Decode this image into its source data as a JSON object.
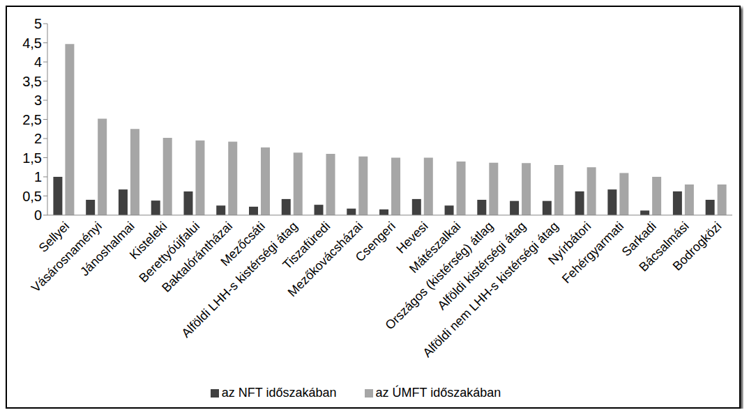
{
  "chart_data": {
    "type": "bar",
    "categories": [
      "Sellyei",
      "Vásárosnaményi",
      "Jánoshalmai",
      "Kisteleki",
      "Berettyóújfalui",
      "Baktalórántházai",
      "Mezőcsáti",
      "Alföldi LHH-s kistérségi átag",
      "Tiszafüredi",
      "Mezőkovácsházai",
      "Csengeri",
      "Hevesi",
      "Mátészalkai",
      "Országos (kistérség) átlag",
      "Alföldi kistérségi átag",
      "Alföldi nem LHH-s kistérségi átag",
      "Nyírbátori",
      "Fehérgyarmati",
      "Sarkadi",
      "Bácsalmási",
      "Bodrogközi"
    ],
    "series": [
      {
        "name": "az NFT időszakában",
        "color": "#404040",
        "values": [
          1.0,
          0.4,
          0.67,
          0.38,
          0.62,
          0.25,
          0.22,
          0.42,
          0.27,
          0.17,
          0.15,
          0.42,
          0.25,
          0.4,
          0.37,
          0.37,
          0.62,
          0.67,
          0.12,
          0.62,
          0.4
        ]
      },
      {
        "name": "az ÚMFT időszakában",
        "color": "#a6a6a6",
        "values": [
          4.47,
          2.52,
          2.25,
          2.02,
          1.95,
          1.92,
          1.77,
          1.63,
          1.6,
          1.53,
          1.5,
          1.5,
          1.4,
          1.37,
          1.36,
          1.31,
          1.25,
          1.1,
          1.0,
          0.8,
          0.8
        ]
      }
    ],
    "ylim": [
      0,
      5
    ],
    "yticks": [
      0,
      {
        "value": 0.5,
        "label": "0,5"
      },
      1,
      {
        "value": 1.5,
        "label": "1,5"
      },
      2,
      {
        "value": 2.5,
        "label": "2,5"
      },
      3,
      {
        "value": 3.5,
        "label": "3,5"
      },
      4,
      {
        "value": 4.5,
        "label": "4,5"
      },
      5
    ],
    "grid": false,
    "legend": "bottom"
  }
}
